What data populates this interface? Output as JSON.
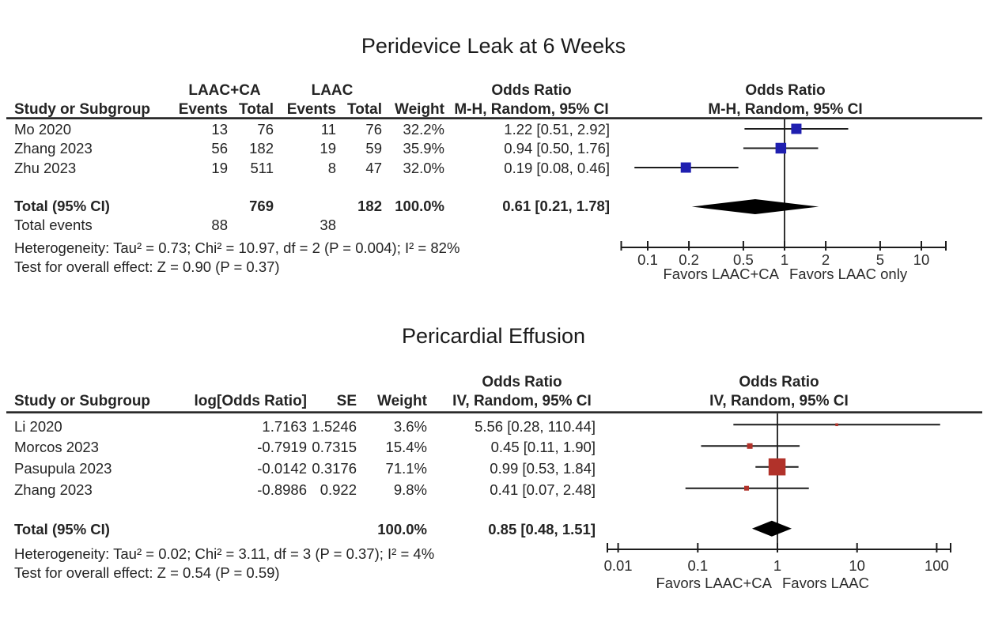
{
  "figure": {
    "background": "#ffffff"
  },
  "colors": {
    "text": "#242424",
    "line": "#1c1c1c",
    "diamond": "#000000",
    "rule": "#2b2b2b"
  },
  "chart_data": [
    {
      "type": "forest",
      "title": "Peridevice Leak at 6 Weeks",
      "effect_header": "Odds Ratio",
      "method_header": "M-H, Random, 95% CI",
      "group_headers": [
        "LAAC+CA",
        "LAAC"
      ],
      "column_headers": [
        "Study or Subgroup",
        "Events",
        "Total",
        "Events",
        "Total",
        "Weight"
      ],
      "marker_color": "#1f1fb0",
      "log_scale": true,
      "studies": [
        {
          "name": "Mo 2020",
          "cells": [
            "13",
            "76",
            "11",
            "76",
            "32.2%"
          ],
          "ci_label": "1.22 [0.51, 2.92]",
          "est": 1.22,
          "lo": 0.51,
          "hi": 2.92,
          "size": 13
        },
        {
          "name": "Zhang 2023",
          "cells": [
            "56",
            "182",
            "19",
            "59",
            "35.9%"
          ],
          "ci_label": "0.94 [0.50, 1.76]",
          "est": 0.94,
          "lo": 0.5,
          "hi": 1.76,
          "size": 13.5
        },
        {
          "name": "Zhu 2023",
          "cells": [
            "19",
            "511",
            "8",
            "47",
            "32.0%"
          ],
          "ci_label": "0.19 [0.08, 0.46]",
          "est": 0.19,
          "lo": 0.08,
          "hi": 0.46,
          "size": 13
        }
      ],
      "total": {
        "label": "Total (95% CI)",
        "cells": [
          "",
          "769",
          "",
          "182",
          "100.0%"
        ],
        "ci_label": "0.61 [0.21, 1.78]",
        "est": 0.61,
        "lo": 0.21,
        "hi": 1.78
      },
      "total_events": {
        "label": "Total events",
        "events1": "88",
        "events2": "38"
      },
      "heterogeneity": "Heterogeneity: Tau² = 0.73; Chi² = 10.97, df = 2 (P = 0.004); I² = 82%",
      "overall_effect": "Test for overall effect: Z = 0.90 (P = 0.37)",
      "axis_ticks": [
        0.1,
        0.2,
        0.5,
        1,
        2,
        5,
        10
      ],
      "axis_tick_labels": [
        "0.1",
        "0.2",
        "0.5",
        "1",
        "2",
        "5",
        "10"
      ],
      "axis_range": [
        0.064,
        15.5
      ],
      "favors_left": "Favors LAAC+CA",
      "favors_right": "Favors LAAC only"
    },
    {
      "type": "forest",
      "title": "Pericardial Effusion",
      "effect_header": "Odds Ratio",
      "method_header": "IV, Random, 95% CI",
      "group_headers": [],
      "column_headers": [
        "Study or Subgroup",
        "log[Odds Ratio]",
        "SE",
        "Weight"
      ],
      "marker_color": "#b1322a",
      "log_scale": true,
      "studies": [
        {
          "name": "Li 2020",
          "cells": [
            "1.7163",
            "1.5246",
            "3.6%"
          ],
          "ci_label": "5.56 [0.28, 110.44]",
          "est": 5.56,
          "lo": 0.28,
          "hi": 110.44,
          "size": 3.5
        },
        {
          "name": "Morcos 2023",
          "cells": [
            "-0.7919",
            "0.7315",
            "15.4%"
          ],
          "ci_label": "0.45 [0.11, 1.90]",
          "est": 0.45,
          "lo": 0.11,
          "hi": 1.9,
          "size": 7
        },
        {
          "name": "Pasupula 2023",
          "cells": [
            "-0.0142",
            "0.3176",
            "71.1%"
          ],
          "ci_label": "0.99 [0.53, 1.84]",
          "est": 0.99,
          "lo": 0.53,
          "hi": 1.84,
          "size": 21.5
        },
        {
          "name": "Zhang 2023",
          "cells": [
            "-0.8986",
            "0.922",
            "9.8%"
          ],
          "ci_label": "0.41 [0.07, 2.48]",
          "est": 0.41,
          "lo": 0.07,
          "hi": 2.48,
          "size": 6
        }
      ],
      "total": {
        "label": "Total (95% CI)",
        "cells": [
          "",
          "",
          "100.0%"
        ],
        "ci_label": "0.85 [0.48, 1.51]",
        "est": 0.85,
        "lo": 0.48,
        "hi": 1.51
      },
      "heterogeneity": "Heterogeneity: Tau² = 0.02; Chi² = 3.11, df = 3 (P = 0.37); I² = 4%",
      "overall_effect": "Test for overall effect: Z = 0.54 (P = 0.59)",
      "axis_ticks": [
        0.01,
        0.1,
        1,
        10,
        100
      ],
      "axis_tick_labels": [
        "0.01",
        "0.1",
        "1",
        "10",
        "100"
      ],
      "axis_range": [
        0.0073,
        150
      ],
      "favors_left": "Favors LAAC+CA",
      "favors_right": "Favors LAAC"
    }
  ]
}
